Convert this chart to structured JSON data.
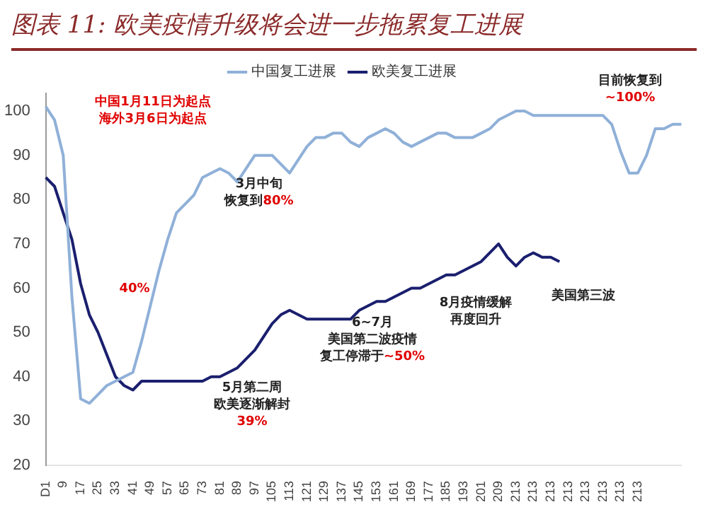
{
  "chart_data": {
    "type": "line",
    "title": "图表 11: 欧美疫情升级将会进一步拖累复工进展",
    "categories": [
      "D1",
      null,
      "9",
      null,
      "17",
      null,
      "25",
      null,
      "33",
      null,
      "41",
      null,
      "49",
      null,
      "57",
      null,
      "65",
      null,
      "73",
      null,
      "81",
      null,
      "89",
      null,
      "97",
      null,
      "105",
      null,
      "113",
      null,
      "121",
      null,
      "129",
      null,
      "137",
      null,
      "145",
      null,
      "153",
      null,
      "161",
      null,
      "169",
      null,
      "177",
      null,
      "185",
      null,
      "193",
      null,
      "201",
      null,
      "209",
      null,
      "213",
      null,
      "213",
      null,
      "213",
      null,
      "213",
      null,
      "213",
      null,
      "213",
      null,
      "213",
      null,
      "213",
      null,
      null,
      null,
      null,
      null
    ],
    "ylim": [
      20,
      104
    ],
    "yticks": [
      20,
      30,
      40,
      50,
      60,
      70,
      80,
      90,
      100
    ],
    "grid": false,
    "legend": "top",
    "marker": "none",
    "line_style": "solid",
    "series": [
      {
        "name": "中国复工进展",
        "color": "#8fb0d8",
        "values": [
          101,
          98,
          90,
          58,
          35,
          34,
          36,
          38,
          39,
          40,
          41,
          48,
          56,
          64,
          71,
          77,
          79,
          81,
          85,
          86,
          87,
          86,
          84,
          87,
          90,
          90,
          90,
          88,
          86,
          89,
          92,
          94,
          94,
          95,
          95,
          93,
          92,
          94,
          95,
          96,
          95,
          93,
          92,
          93,
          94,
          95,
          95,
          94,
          94,
          94,
          95,
          96,
          98,
          99,
          100,
          100,
          99,
          99,
          99,
          99,
          99,
          99,
          99,
          99,
          99,
          97,
          91,
          86,
          86,
          90,
          96,
          96,
          97,
          97
        ]
      },
      {
        "name": "欧美复工进展",
        "color": "#1a1f6e",
        "values": [
          85,
          83,
          77,
          71,
          61,
          54,
          50,
          45,
          40,
          38,
          37,
          39,
          39,
          39,
          39,
          39,
          39,
          39,
          39,
          40,
          40,
          41,
          42,
          44,
          46,
          49,
          52,
          54,
          55,
          54,
          53,
          53,
          53,
          53,
          53,
          53,
          55,
          56,
          57,
          57,
          58,
          59,
          60,
          60,
          61,
          62,
          63,
          63,
          64,
          65,
          66,
          68,
          70,
          67,
          65,
          67,
          68,
          67,
          67,
          66,
          null,
          null,
          null,
          null,
          null,
          null,
          null,
          null,
          null,
          null,
          null,
          null,
          null,
          null
        ]
      }
    ],
    "annotations": [
      "中国1月11日为起点海外3月6日为起点",
      "3月中旬恢复到80%",
      "40%",
      "5月第二周欧美逐渐解封39%",
      "6~7月美国第二波疫情复工停滞于~50%",
      "8月疫情缓解再度回升",
      "美国第三波",
      "目前恢复到~100%"
    ]
  }
}
